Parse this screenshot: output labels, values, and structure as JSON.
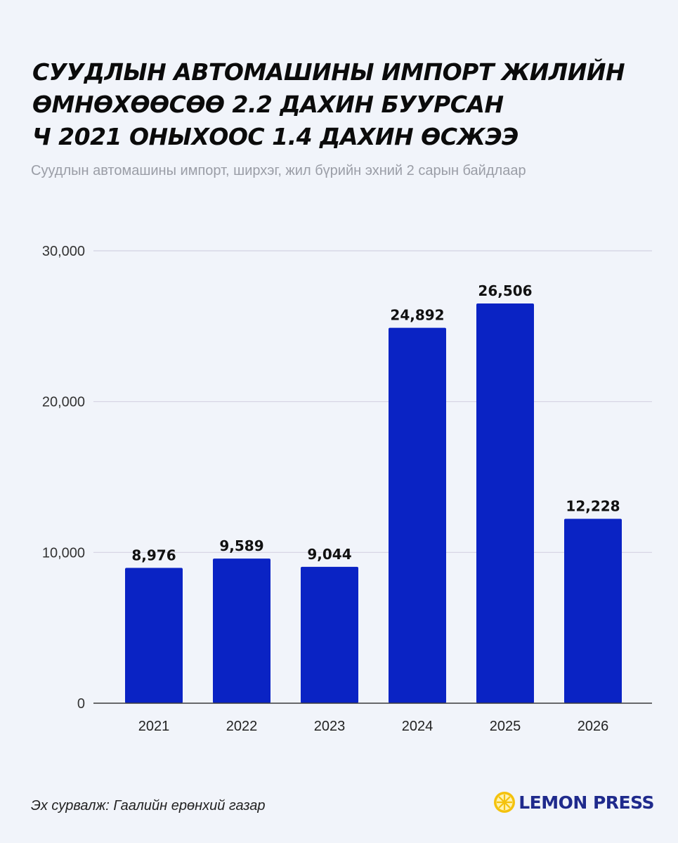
{
  "title_lines": [
    "СУУДЛЫН АВТОМАШИНЫ ИМПОРТ ЖИЛИЙН",
    "ӨМНӨХӨӨСӨӨ 2.2 ДАХИН БУУРСАН",
    "Ч 2021 ОНЫХООС 1.4 ДАХИН ӨСЖЭЭ"
  ],
  "subtitle": "Суудлын автомашины импорт, ширхэг, жил бүрийн эхний 2 сарын байдлаар",
  "source": "Эх сурвалж: Гаалийн ерөнхий газар",
  "brand": {
    "name": "LEMON PRESS",
    "logo_icon": "lemon-slice-icon"
  },
  "colors": {
    "bar": "#0a23c4",
    "background": "#f1f4fa",
    "grid": "#d4d2e2",
    "subtitle": "#9a9da6",
    "brand": "#1f2a8c",
    "logo": "#f4c20d"
  },
  "chart_data": {
    "type": "bar",
    "title": "СУУДЛЫН АВТОМАШИНЫ ИМПОРТ ЖИЛИЙН ӨМНӨХӨӨСӨӨ 2.2 ДАХИН БУУРСАН Ч 2021 ОНЫХООС 1.4 ДАХИН ӨСЖЭЭ",
    "subtitle": "Суудлын автомашины импорт, ширхэг, жил бүрийн эхний 2 сарын байдлаар",
    "categories": [
      "2021",
      "2022",
      "2023",
      "2024",
      "2025",
      "2026"
    ],
    "values": [
      8976,
      9589,
      9044,
      24892,
      26506,
      12228
    ],
    "value_labels": [
      "8,976",
      "9,589",
      "9,044",
      "24,892",
      "26,506",
      "12,228"
    ],
    "xlabel": "",
    "ylabel": "",
    "ylim": [
      0,
      30000
    ],
    "yticks": [
      0,
      10000,
      20000,
      30000
    ],
    "ytick_labels": [
      "0",
      "10,000",
      "20,000",
      "30,000"
    ],
    "grid": true,
    "legend": "none"
  }
}
